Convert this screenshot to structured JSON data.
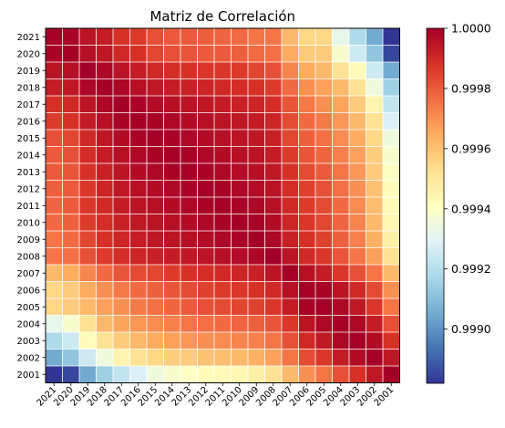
{
  "chart_data": {
    "type": "heatmap",
    "title": "Matriz de Correlación",
    "xlabel": "",
    "ylabel": "",
    "x_categories": [
      "2021",
      "2020",
      "2019",
      "2018",
      "2017",
      "2016",
      "2015",
      "2014",
      "2013",
      "2012",
      "2011",
      "2010",
      "2009",
      "2008",
      "2007",
      "2006",
      "2005",
      "2004",
      "2003",
      "2002",
      "2001"
    ],
    "y_categories": [
      "2021",
      "2020",
      "2019",
      "2018",
      "2017",
      "2016",
      "2015",
      "2014",
      "2013",
      "2012",
      "2011",
      "2010",
      "2009",
      "2008",
      "2007",
      "2006",
      "2005",
      "2004",
      "2003",
      "2002",
      "2001"
    ],
    "colormap": "RdYlBu_r",
    "vmin": 0.99882,
    "vmax": 1.0,
    "grid": true,
    "grid_color": "#ffffff",
    "colorbar": {
      "position": "right",
      "ticks": [
        0.999,
        0.9992,
        0.9994,
        0.9996,
        0.9998,
        1.0
      ],
      "tick_labels": [
        "0.9990",
        "0.9992",
        "0.9994",
        "0.9996",
        "0.9998",
        "1.0000"
      ]
    },
    "values": [
      [
        1.0,
        0.99999,
        0.99995,
        0.99993,
        0.99988,
        0.99986,
        0.99982,
        0.9998,
        0.9998,
        0.99979,
        0.99978,
        0.99977,
        0.99975,
        0.99975,
        0.99962,
        0.99955,
        0.99955,
        0.99932,
        0.99918,
        0.99905,
        0.99882
      ],
      [
        0.99999,
        1.0,
        0.99996,
        0.99994,
        0.9999,
        0.99988,
        0.99984,
        0.99982,
        0.99981,
        0.9998,
        0.9998,
        0.99979,
        0.99977,
        0.99976,
        0.99965,
        0.99958,
        0.99958,
        0.99938,
        0.99925,
        0.99912,
        0.99885
      ],
      [
        0.99995,
        0.99996,
        1.0,
        0.99998,
        0.99995,
        0.99993,
        0.9999,
        0.99989,
        0.99988,
        0.99987,
        0.99987,
        0.99986,
        0.99984,
        0.99982,
        0.99972,
        0.99965,
        0.99962,
        0.99952,
        0.99942,
        0.99925,
        0.99905
      ],
      [
        0.99993,
        0.99994,
        0.99998,
        1.0,
        0.99998,
        0.99996,
        0.99994,
        0.99993,
        0.99992,
        0.99991,
        0.9999,
        0.99989,
        0.99988,
        0.99986,
        0.99977,
        0.9997,
        0.99967,
        0.99962,
        0.99952,
        0.99935,
        0.99915
      ],
      [
        0.99988,
        0.9999,
        0.99995,
        0.99998,
        1.0,
        0.99999,
        0.99997,
        0.99996,
        0.99995,
        0.99994,
        0.99993,
        0.99992,
        0.99991,
        0.99989,
        0.99981,
        0.99974,
        0.9997,
        0.99966,
        0.99958,
        0.99945,
        0.99922
      ],
      [
        0.99986,
        0.99988,
        0.99993,
        0.99996,
        0.99999,
        1.0,
        0.99999,
        0.99998,
        0.99997,
        0.99996,
        0.99995,
        0.99994,
        0.99993,
        0.99991,
        0.99983,
        0.99977,
        0.99974,
        0.99969,
        0.99962,
        0.99952,
        0.99928
      ],
      [
        0.99982,
        0.99984,
        0.9999,
        0.99994,
        0.99997,
        0.99999,
        1.0,
        0.99999,
        0.99998,
        0.99997,
        0.99996,
        0.99995,
        0.99994,
        0.99992,
        0.99984,
        0.99979,
        0.99976,
        0.99971,
        0.99965,
        0.99955,
        0.99935
      ],
      [
        0.9998,
        0.99982,
        0.99989,
        0.99993,
        0.99996,
        0.99998,
        0.99999,
        1.0,
        0.99999,
        0.99998,
        0.99997,
        0.99996,
        0.99995,
        0.99993,
        0.99986,
        0.99981,
        0.99978,
        0.99973,
        0.99967,
        0.99957,
        0.99938
      ],
      [
        0.9998,
        0.99981,
        0.99988,
        0.99992,
        0.99995,
        0.99997,
        0.99998,
        0.99999,
        1.0,
        0.99999,
        0.99998,
        0.99997,
        0.99996,
        0.99994,
        0.99988,
        0.99983,
        0.9998,
        0.99975,
        0.99969,
        0.99958,
        0.9994
      ],
      [
        0.99979,
        0.9998,
        0.99987,
        0.99991,
        0.99994,
        0.99996,
        0.99997,
        0.99998,
        0.99999,
        1.0,
        0.99999,
        0.99998,
        0.99997,
        0.99995,
        0.99989,
        0.99985,
        0.99982,
        0.99976,
        0.9997,
        0.9996,
        0.99942
      ],
      [
        0.99978,
        0.9998,
        0.99987,
        0.9999,
        0.99993,
        0.99995,
        0.99996,
        0.99997,
        0.99998,
        0.99999,
        1.0,
        0.99999,
        0.99998,
        0.99996,
        0.9999,
        0.99986,
        0.99983,
        0.99977,
        0.99971,
        0.99961,
        0.99943
      ],
      [
        0.99977,
        0.99979,
        0.99986,
        0.99989,
        0.99992,
        0.99994,
        0.99995,
        0.99996,
        0.99997,
        0.99998,
        0.99999,
        1.0,
        0.99999,
        0.99997,
        0.99991,
        0.99987,
        0.99984,
        0.99978,
        0.99972,
        0.99962,
        0.99944
      ],
      [
        0.99975,
        0.99977,
        0.99984,
        0.99988,
        0.99991,
        0.99993,
        0.99994,
        0.99995,
        0.99996,
        0.99997,
        0.99998,
        0.99999,
        1.0,
        0.99998,
        0.99992,
        0.99988,
        0.99985,
        0.99979,
        0.99973,
        0.99964,
        0.99947
      ],
      [
        0.99975,
        0.99976,
        0.99982,
        0.99986,
        0.99989,
        0.99991,
        0.99992,
        0.99993,
        0.99994,
        0.99995,
        0.99996,
        0.99997,
        0.99998,
        1.0,
        0.99995,
        0.9999,
        0.99987,
        0.99981,
        0.99975,
        0.99967,
        0.99952
      ],
      [
        0.99962,
        0.99965,
        0.99972,
        0.99977,
        0.99981,
        0.99983,
        0.99984,
        0.99986,
        0.99988,
        0.99989,
        0.9999,
        0.99991,
        0.99992,
        0.99995,
        1.0,
        0.99996,
        0.99993,
        0.99987,
        0.99982,
        0.99975,
        0.99962
      ],
      [
        0.99955,
        0.99958,
        0.99965,
        0.9997,
        0.99974,
        0.99977,
        0.99979,
        0.99981,
        0.99983,
        0.99985,
        0.99986,
        0.99987,
        0.99988,
        0.9999,
        0.99996,
        1.0,
        0.99999,
        0.99995,
        0.9999,
        0.99983,
        0.9997
      ],
      [
        0.99955,
        0.99958,
        0.99962,
        0.99967,
        0.9997,
        0.99974,
        0.99976,
        0.99978,
        0.9998,
        0.99982,
        0.99983,
        0.99984,
        0.99985,
        0.99987,
        0.99993,
        0.99999,
        1.0,
        0.99998,
        0.99994,
        0.99987,
        0.99975
      ],
      [
        0.99932,
        0.99938,
        0.99952,
        0.99962,
        0.99966,
        0.99969,
        0.99971,
        0.99973,
        0.99975,
        0.99976,
        0.99977,
        0.99978,
        0.99979,
        0.99981,
        0.99987,
        0.99995,
        0.99998,
        1.0,
        0.99998,
        0.99993,
        0.99982
      ],
      [
        0.99918,
        0.99925,
        0.99942,
        0.99952,
        0.99958,
        0.99962,
        0.99965,
        0.99967,
        0.99969,
        0.9997,
        0.99971,
        0.99972,
        0.99973,
        0.99975,
        0.99982,
        0.9999,
        0.99994,
        0.99998,
        1.0,
        0.99997,
        0.99988
      ],
      [
        0.99905,
        0.99912,
        0.99925,
        0.99935,
        0.99945,
        0.99952,
        0.99955,
        0.99957,
        0.99958,
        0.9996,
        0.99961,
        0.99962,
        0.99964,
        0.99967,
        0.99975,
        0.99983,
        0.99987,
        0.99993,
        0.99997,
        1.0,
        0.99994
      ],
      [
        0.99882,
        0.99885,
        0.99905,
        0.99915,
        0.99922,
        0.99928,
        0.99935,
        0.99938,
        0.9994,
        0.99942,
        0.99943,
        0.99944,
        0.99947,
        0.99952,
        0.99962,
        0.9997,
        0.99975,
        0.99982,
        0.99988,
        0.99994,
        1.0
      ]
    ]
  }
}
